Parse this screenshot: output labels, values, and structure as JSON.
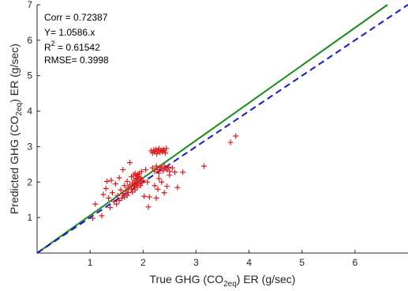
{
  "chart_data": {
    "type": "scatter",
    "xlabel": {
      "pre": "True GHG (CO",
      "sub": "2eq",
      "post": ") ER (g/sec)"
    },
    "ylabel": {
      "pre": "Predicted GHG (CO",
      "sub": "2eq",
      "post": ") ER (g/sec)"
    },
    "xlim": [
      0,
      7
    ],
    "ylim": [
      0,
      7
    ],
    "x_ticks": [
      "1",
      "2",
      "3",
      "4",
      "5",
      "6"
    ],
    "y_ticks": [
      "1",
      "2",
      "3",
      "4",
      "5",
      "6",
      "7"
    ],
    "grid": false,
    "annotations": {
      "corr": "Corr = 0.72387",
      "fit": "Y= 1.0586.x",
      "r2_pre": "R",
      "r2_sup": "2",
      "r2_post": " = 0.61542",
      "rmse": "RMSE= 0.3998"
    },
    "lines": [
      {
        "style": "solid",
        "color": "#1a8c1a",
        "slope": 1.0586
      },
      {
        "style": "dashed",
        "color": "#1515d6",
        "slope": 1.0
      }
    ],
    "marker_color": "#e01a1a",
    "points": [
      [
        1.05,
        0.98
      ],
      [
        1.1,
        1.38
      ],
      [
        1.22,
        1.05
      ],
      [
        1.25,
        1.65
      ],
      [
        1.3,
        1.82
      ],
      [
        1.32,
        2.02
      ],
      [
        1.35,
        1.55
      ],
      [
        1.38,
        1.28
      ],
      [
        1.4,
        2.05
      ],
      [
        1.42,
        1.7
      ],
      [
        1.45,
        1.45
      ],
      [
        1.48,
        1.95
      ],
      [
        1.5,
        1.38
      ],
      [
        1.52,
        1.62
      ],
      [
        1.55,
        2.12
      ],
      [
        1.55,
        1.48
      ],
      [
        1.58,
        1.78
      ],
      [
        1.6,
        1.55
      ],
      [
        1.62,
        2.35
      ],
      [
        1.62,
        1.68
      ],
      [
        1.65,
        1.9
      ],
      [
        1.65,
        1.58
      ],
      [
        1.68,
        1.75
      ],
      [
        1.7,
        2.02
      ],
      [
        1.7,
        1.62
      ],
      [
        1.72,
        1.85
      ],
      [
        1.72,
        1.7
      ],
      [
        1.75,
        2.55
      ],
      [
        1.75,
        1.92
      ],
      [
        1.78,
        1.8
      ],
      [
        1.78,
        2.15
      ],
      [
        1.8,
        1.72
      ],
      [
        1.8,
        1.98
      ],
      [
        1.82,
        2.2
      ],
      [
        1.82,
        1.88
      ],
      [
        1.83,
        2.05
      ],
      [
        1.84,
        1.95
      ],
      [
        1.85,
        2.25
      ],
      [
        1.85,
        1.78
      ],
      [
        1.86,
        2.1
      ],
      [
        1.87,
        1.92
      ],
      [
        1.88,
        2.18
      ],
      [
        1.88,
        2.0
      ],
      [
        1.89,
        1.85
      ],
      [
        1.9,
        2.22
      ],
      [
        1.9,
        2.08
      ],
      [
        1.91,
        1.96
      ],
      [
        1.92,
        2.15
      ],
      [
        1.93,
        2.25
      ],
      [
        1.94,
        2.02
      ],
      [
        1.95,
        1.9
      ],
      [
        1.96,
        2.12
      ],
      [
        1.97,
        2.3
      ],
      [
        1.98,
        1.98
      ],
      [
        2.0,
        2.05
      ],
      [
        2.02,
        1.6
      ],
      [
        2.05,
        2.35
      ],
      [
        2.08,
        2.0
      ],
      [
        2.1,
        1.3
      ],
      [
        2.12,
        1.58
      ],
      [
        2.15,
        2.88
      ],
      [
        2.18,
        2.82
      ],
      [
        2.2,
        2.9
      ],
      [
        2.22,
        2.85
      ],
      [
        2.24,
        2.92
      ],
      [
        2.26,
        2.8
      ],
      [
        2.28,
        2.88
      ],
      [
        2.3,
        2.95
      ],
      [
        2.32,
        2.84
      ],
      [
        2.34,
        2.9
      ],
      [
        2.36,
        2.86
      ],
      [
        2.38,
        2.92
      ],
      [
        2.4,
        2.88
      ],
      [
        2.42,
        2.82
      ],
      [
        2.44,
        2.95
      ],
      [
        2.18,
        2.4
      ],
      [
        2.22,
        2.3
      ],
      [
        2.25,
        2.45
      ],
      [
        2.28,
        2.35
      ],
      [
        2.3,
        2.25
      ],
      [
        2.32,
        2.42
      ],
      [
        2.35,
        2.38
      ],
      [
        2.38,
        2.32
      ],
      [
        2.4,
        2.45
      ],
      [
        2.42,
        2.4
      ],
      [
        2.45,
        2.35
      ],
      [
        2.48,
        2.42
      ],
      [
        2.5,
        2.3
      ],
      [
        2.22,
        1.9
      ],
      [
        2.25,
        1.55
      ],
      [
        2.28,
        1.8
      ],
      [
        2.3,
        2.1
      ],
      [
        2.35,
        2.0
      ],
      [
        2.4,
        1.7
      ],
      [
        2.45,
        1.88
      ],
      [
        2.5,
        2.2
      ],
      [
        2.55,
        2.4
      ],
      [
        2.6,
        2.28
      ],
      [
        2.65,
        1.85
      ],
      [
        2.75,
        2.28
      ],
      [
        3.15,
        2.45
      ],
      [
        3.65,
        3.12
      ],
      [
        3.75,
        3.3
      ]
    ]
  }
}
